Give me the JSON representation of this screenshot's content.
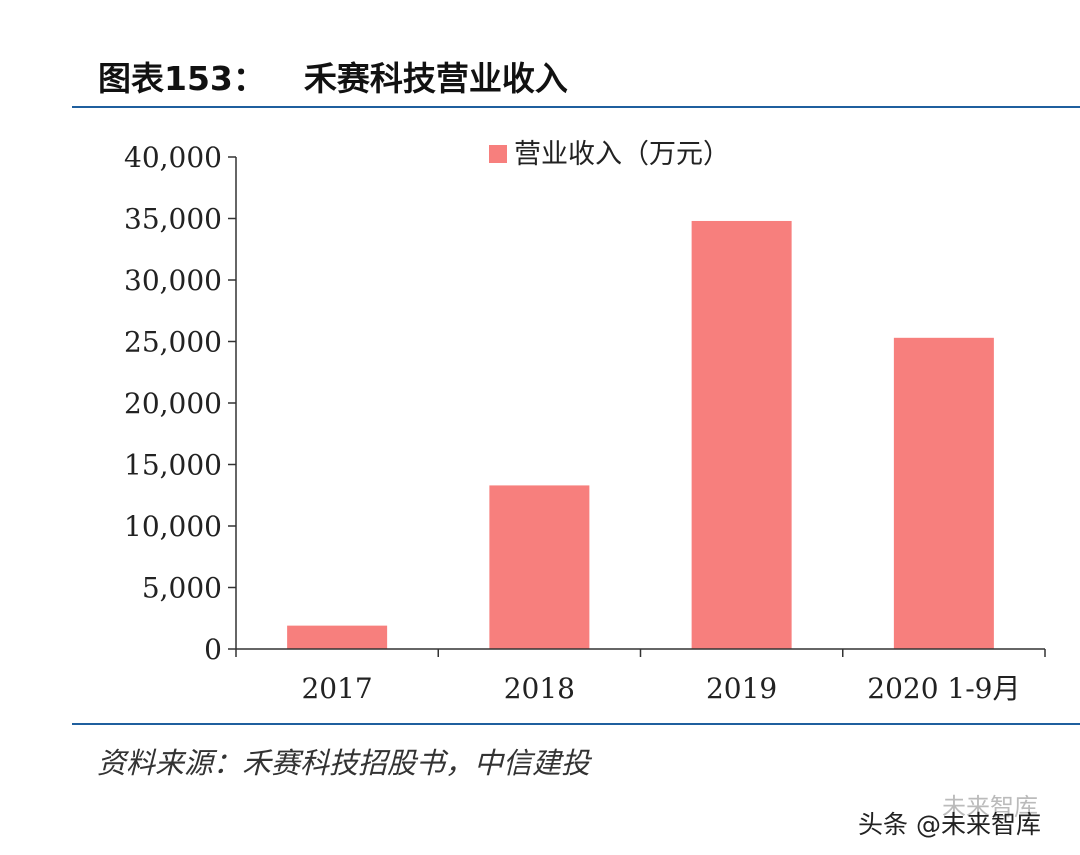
{
  "figure": {
    "label": "图表153：",
    "title": "禾赛科技营业收入"
  },
  "chart_data": {
    "type": "bar",
    "title": "禾赛科技营业收入",
    "categories": [
      "2017",
      "2018",
      "2019",
      "2020 1-9月"
    ],
    "series": [
      {
        "name": "营业收入（万元）",
        "values": [
          1900,
          13300,
          34800,
          25300
        ]
      }
    ],
    "ylim": [
      0,
      40000
    ],
    "yticks": [
      0,
      5000,
      10000,
      15000,
      20000,
      25000,
      30000,
      35000,
      40000
    ],
    "ytick_labels": [
      "0",
      "5,000",
      "10,000",
      "15,000",
      "20,000",
      "25,000",
      "30,000",
      "35,000",
      "40,000"
    ],
    "xlabel": "",
    "ylabel": "",
    "legend": "top-center",
    "grid": false,
    "bar_color": "#f77f7d"
  },
  "source": "资料来源：禾赛科技招股书，中信建投",
  "watermark": {
    "text": "头条 @未来智库",
    "ghost": "未来智库"
  }
}
